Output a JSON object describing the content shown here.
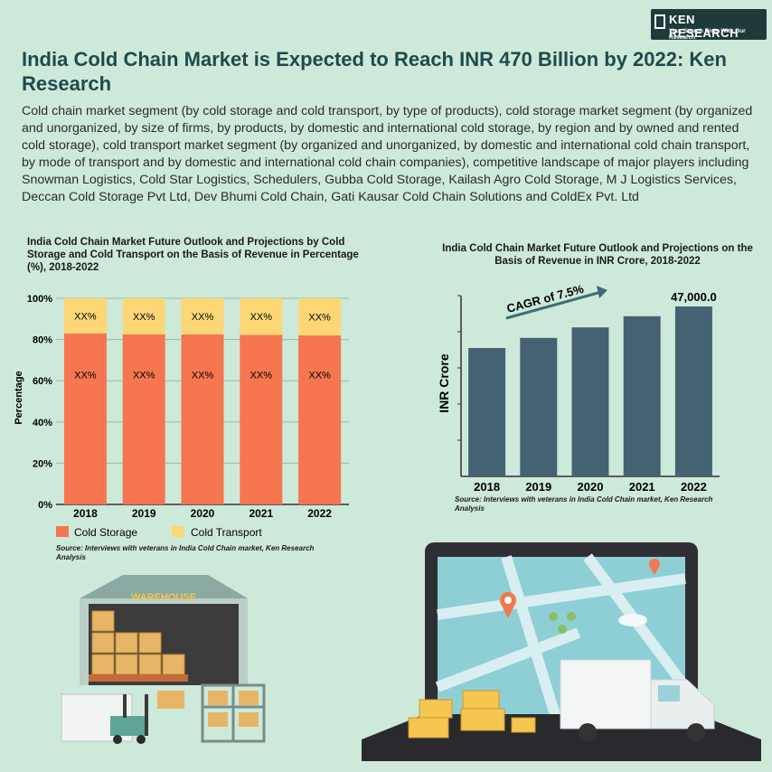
{
  "header": {
    "logo_brand": "KEN RESEARCH",
    "logo_tagline": "Your Search Ends With Our Research",
    "title": "India Cold Chain Market is Expected to Reach INR 470 Billion by 2022: Ken Research",
    "description": "Cold chain market segment (by cold storage and cold transport, by type of products), cold storage market segment (by organized and unorganized, by size of firms, by products, by domestic and international cold storage, by region and by owned and rented cold storage), cold transport market segment (by organized and unorganized, by domestic and international cold chain transport, by mode of transport and by domestic and international cold chain companies), competitive landscape of major players including Snowman Logistics, Cold Star Logistics, Schedulers, Gubba Cold Storage, Kailash Agro Cold Storage, M J Logistics Services, Deccan Cold Storage Pvt Ltd, Dev Bhumi Cold Chain, Gati Kausar Cold Chain Solutions and ColdEx Pvt. Ltd"
  },
  "illustration": {
    "warehouse_sign": "WAREHOUSE"
  },
  "colors": {
    "cold_storage": "#f5764f",
    "cold_transport": "#fdd776",
    "bar_dark": "#456273",
    "title": "#1e4a4c"
  },
  "chart_data": [
    {
      "type": "bar",
      "stacked": true,
      "title": "India Cold Chain Market Future Outlook and Projections by Cold Storage and Cold Transport on the Basis of Revenue in Percentage (%), 2018-2022",
      "categories": [
        "2018",
        "2019",
        "2020",
        "2021",
        "2022"
      ],
      "ylabel": "Percentage",
      "ylim": [
        0,
        100
      ],
      "yticks": [
        "0%",
        "20%",
        "40%",
        "60%",
        "80%",
        "100%"
      ],
      "series": [
        {
          "name": "Cold Storage",
          "values": [
            83,
            82.5,
            82.5,
            82.3,
            82
          ],
          "labels": [
            "XX%",
            "XX%",
            "XX%",
            "XX%",
            "XX%"
          ]
        },
        {
          "name": "Cold Transport",
          "values": [
            17,
            17.5,
            17.5,
            17.7,
            18
          ],
          "labels": [
            "XX%",
            "XX%",
            "XX%",
            "XX%",
            "XX%"
          ]
        }
      ],
      "legend": "bottom",
      "source": "Source: Interviews with veterans in India Cold Chain market, Ken Research Analysis"
    },
    {
      "type": "bar",
      "title": "India Cold Chain Market Future Outlook and Projections on the Basis of Revenue in INR Crore, 2018-2022",
      "categories": [
        "2018",
        "2019",
        "2020",
        "2021",
        "2022"
      ],
      "values": [
        35500,
        38300,
        41200,
        44300,
        47000
      ],
      "value_label_last": "47,000.0",
      "ylabel": "INR Crore",
      "ylim": [
        0,
        50000
      ],
      "annotation": "CAGR of 7.5%",
      "source": "Source: Interviews with veterans in India Cold Chain market, Ken Research Analysis"
    }
  ]
}
